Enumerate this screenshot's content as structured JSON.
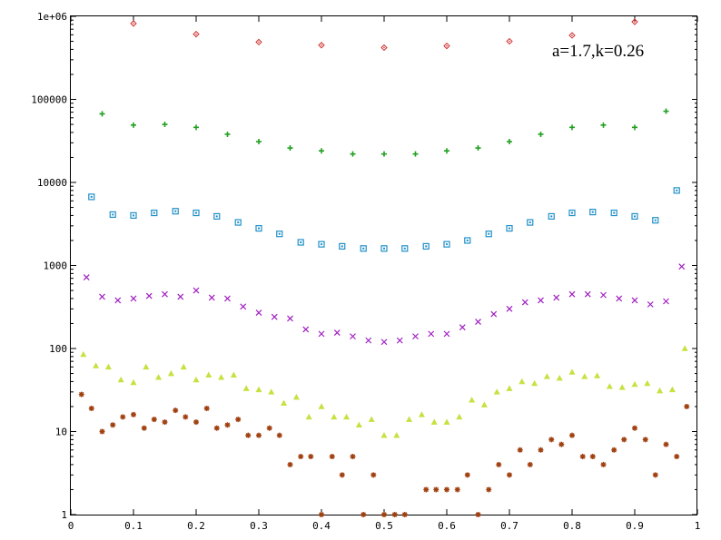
{
  "chart_data": {
    "type": "scatter",
    "title": "",
    "xlabel": "",
    "ylabel": "",
    "annotation": "a=1.7,k=0.26",
    "xlim": [
      0,
      1
    ],
    "ylim": [
      1,
      1000000
    ],
    "yscale": "log",
    "grid": false,
    "xticks": [
      "0",
      "0.1",
      "0.2",
      "0.3",
      "0.4",
      "0.5",
      "0.6",
      "0.7",
      "0.8",
      "0.9",
      "1"
    ],
    "yticks": [
      "1",
      "10",
      "100",
      "1000",
      "10000",
      "100000",
      "1e+06"
    ],
    "series": [
      {
        "marker": "diamond",
        "color": "#d03030",
        "x": [
          0.1,
          0.2,
          0.3,
          0.4,
          0.5,
          0.6,
          0.7,
          0.8,
          0.9
        ],
        "y": [
          820000,
          610000,
          490000,
          450000,
          420000,
          440000,
          500000,
          590000,
          860000
        ]
      },
      {
        "marker": "plus",
        "color": "#20a020",
        "x": [
          0.05,
          0.1,
          0.15,
          0.2,
          0.25,
          0.3,
          0.35,
          0.4,
          0.45,
          0.5,
          0.55,
          0.6,
          0.65,
          0.7,
          0.75,
          0.8,
          0.85,
          0.9,
          0.95
        ],
        "y": [
          67000,
          49000,
          50000,
          46000,
          38000,
          31000,
          26000,
          24000,
          22000,
          22000,
          22000,
          24000,
          26000,
          31000,
          38000,
          46000,
          49000,
          46000,
          72000
        ]
      },
      {
        "marker": "square",
        "color": "#2090c8",
        "x": [
          0.033,
          0.067,
          0.1,
          0.133,
          0.167,
          0.2,
          0.233,
          0.267,
          0.3,
          0.333,
          0.367,
          0.4,
          0.433,
          0.467,
          0.5,
          0.533,
          0.567,
          0.6,
          0.633,
          0.667,
          0.7,
          0.733,
          0.767,
          0.8,
          0.833,
          0.867,
          0.9,
          0.933,
          0.967
        ],
        "y": [
          6700,
          4100,
          4000,
          4300,
          4500,
          4300,
          3900,
          3300,
          2800,
          2400,
          1900,
          1800,
          1700,
          1600,
          1600,
          1600,
          1700,
          1800,
          2000,
          2400,
          2800,
          3300,
          3900,
          4300,
          4400,
          4300,
          3900,
          3500,
          8000
        ]
      },
      {
        "marker": "cross",
        "color": "#a020c0",
        "x": [
          0.025,
          0.05,
          0.075,
          0.1,
          0.125,
          0.15,
          0.175,
          0.2,
          0.225,
          0.25,
          0.275,
          0.3,
          0.325,
          0.35,
          0.375,
          0.4,
          0.425,
          0.45,
          0.475,
          0.5,
          0.525,
          0.55,
          0.575,
          0.6,
          0.625,
          0.65,
          0.675,
          0.7,
          0.725,
          0.75,
          0.775,
          0.8,
          0.825,
          0.85,
          0.875,
          0.9,
          0.925,
          0.95,
          0.975
        ],
        "y": [
          720,
          420,
          380,
          400,
          430,
          450,
          420,
          500,
          410,
          400,
          320,
          270,
          240,
          230,
          170,
          150,
          155,
          140,
          125,
          120,
          125,
          140,
          150,
          150,
          180,
          210,
          260,
          300,
          360,
          380,
          410,
          450,
          450,
          440,
          400,
          380,
          340,
          370,
          970
        ]
      },
      {
        "marker": "triangle",
        "color": "#c8e040",
        "x": [
          0.02,
          0.04,
          0.06,
          0.08,
          0.1,
          0.12,
          0.14,
          0.16,
          0.18,
          0.2,
          0.22,
          0.24,
          0.26,
          0.28,
          0.3,
          0.32,
          0.34,
          0.36,
          0.38,
          0.4,
          0.42,
          0.44,
          0.46,
          0.48,
          0.5,
          0.52,
          0.54,
          0.56,
          0.58,
          0.6,
          0.62,
          0.64,
          0.66,
          0.68,
          0.7,
          0.72,
          0.74,
          0.76,
          0.78,
          0.8,
          0.82,
          0.84,
          0.86,
          0.88,
          0.9,
          0.92,
          0.94,
          0.96,
          0.98
        ],
        "y": [
          85,
          62,
          60,
          42,
          39,
          60,
          45,
          50,
          60,
          42,
          48,
          45,
          48,
          33,
          32,
          30,
          22,
          26,
          15,
          20,
          15,
          15,
          12,
          14,
          9,
          9,
          14,
          16,
          13,
          13,
          15,
          24,
          21,
          30,
          33,
          40,
          38,
          46,
          44,
          52,
          46,
          47,
          35,
          34,
          37,
          38,
          31,
          32,
          100
        ]
      },
      {
        "marker": "asterisk",
        "color": "#a04010",
        "x": [
          0.017,
          0.033,
          0.05,
          0.067,
          0.083,
          0.1,
          0.117,
          0.133,
          0.15,
          0.167,
          0.183,
          0.2,
          0.217,
          0.233,
          0.25,
          0.267,
          0.283,
          0.3,
          0.317,
          0.333,
          0.35,
          0.367,
          0.383,
          0.4,
          0.417,
          0.433,
          0.45,
          0.467,
          0.483,
          0.5,
          0.517,
          0.533,
          0.567,
          0.583,
          0.6,
          0.617,
          0.633,
          0.65,
          0.667,
          0.683,
          0.7,
          0.717,
          0.733,
          0.75,
          0.767,
          0.783,
          0.8,
          0.817,
          0.833,
          0.85,
          0.867,
          0.883,
          0.9,
          0.917,
          0.933,
          0.95,
          0.967,
          0.983
        ],
        "y": [
          28,
          19,
          10,
          12,
          15,
          16,
          11,
          14,
          13,
          18,
          15,
          13,
          19,
          11,
          12,
          14,
          9,
          9,
          11,
          9,
          4,
          5,
          5,
          1,
          5,
          3,
          5,
          1,
          3,
          1,
          1,
          1,
          2,
          2,
          2,
          2,
          3,
          1,
          2,
          4,
          3,
          6,
          4,
          6,
          8,
          7,
          9,
          5,
          5,
          4,
          6,
          8,
          11,
          8,
          3,
          7,
          5,
          20
        ]
      }
    ]
  }
}
